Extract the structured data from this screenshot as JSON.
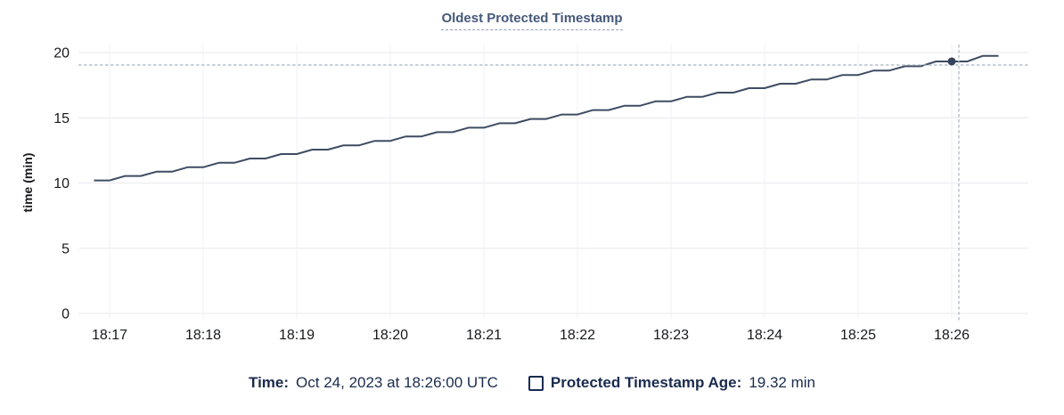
{
  "chart": {
    "title": "Oldest Protected Timestamp"
  },
  "legend": {
    "time_label": "Time:",
    "time_value": "Oct 24, 2023 at 18:26:00 UTC",
    "series_label": "Protected Timestamp Age:",
    "series_value": "19.32 min",
    "checkbox_checked": false
  },
  "colors": {
    "line": "#3e4c63",
    "hover_dot": "#36435a",
    "crosshair": "#a9b5c0",
    "grid": "#ededf1",
    "title": "#46587a",
    "legend_text": "#1a2b4e",
    "axis_text": "#17191c"
  },
  "chart_data": {
    "type": "line",
    "title": "Oldest Protected Timestamp",
    "xlabel": "",
    "ylabel": "time (min)",
    "ylim": [
      0,
      20
    ],
    "y_ticks": [
      0,
      5,
      10,
      15,
      20
    ],
    "x_ticks": [
      "18:17",
      "18:18",
      "18:19",
      "18:20",
      "18:21",
      "18:22",
      "18:23",
      "18:24",
      "18:25",
      "18:26"
    ],
    "grid": true,
    "legend_position": "bottom",
    "series": [
      {
        "name": "Protected Timestamp Age",
        "unit": "min",
        "start_time": "18:16:50",
        "sample_interval_s": 10,
        "values": [
          10.2,
          10.2,
          10.54,
          10.54,
          10.87,
          10.87,
          11.21,
          11.21,
          11.55,
          11.55,
          11.88,
          11.88,
          12.22,
          12.22,
          12.56,
          12.56,
          12.89,
          12.89,
          13.23,
          13.23,
          13.57,
          13.57,
          13.9,
          13.9,
          14.24,
          14.24,
          14.58,
          14.58,
          14.91,
          14.91,
          15.25,
          15.25,
          15.59,
          15.59,
          15.92,
          15.92,
          16.26,
          16.26,
          16.6,
          16.6,
          16.93,
          16.93,
          17.27,
          17.27,
          17.61,
          17.61,
          17.94,
          17.94,
          18.28,
          18.28,
          18.62,
          18.62,
          18.95,
          18.95,
          19.32,
          19.32,
          19.32,
          19.75,
          19.75
        ]
      }
    ],
    "hover_point": {
      "time": "18:26:00",
      "value": 19.32,
      "value_label": "19.32 min",
      "date_label": "Oct 24, 2023 at 18:26:00 UTC"
    }
  }
}
